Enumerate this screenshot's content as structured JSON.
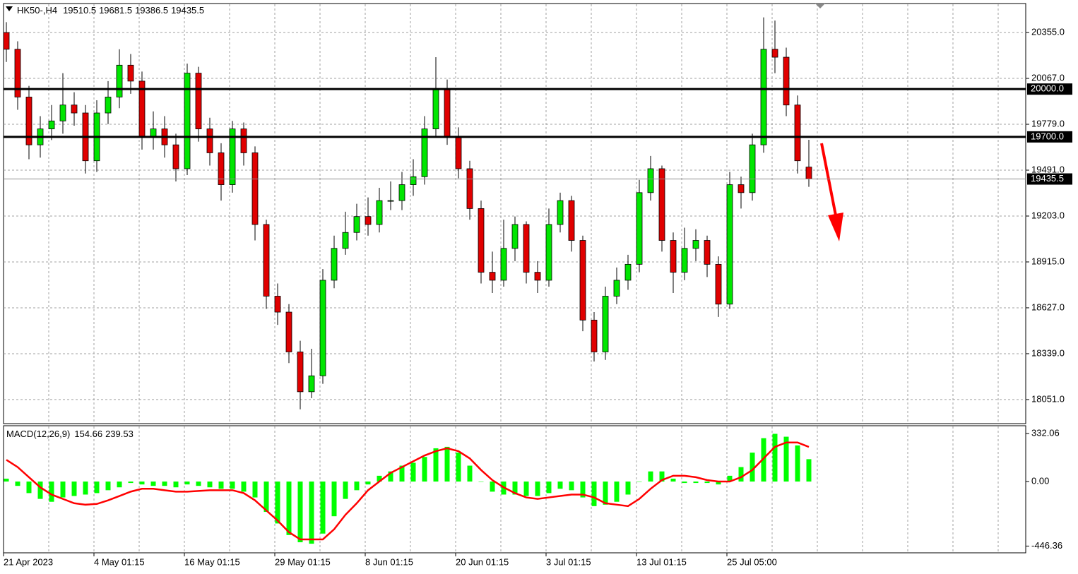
{
  "chart_data": [
    {
      "type": "candlestick",
      "title": "HK50-,H4",
      "categories": [
        "21 Apr 2023",
        null,
        null,
        null,
        null,
        null,
        null,
        null,
        "4 May 01:15",
        null,
        null,
        null,
        null,
        null,
        null,
        null,
        "16 May 01:15",
        null,
        null,
        null,
        null,
        null,
        null,
        null,
        "29 May 01:15",
        null,
        null,
        null,
        null,
        null,
        null,
        null,
        "8 Jun 01:15",
        null,
        null,
        null,
        null,
        null,
        null,
        null,
        "20 Jun 01:15",
        null,
        null,
        null,
        null,
        null,
        null,
        null,
        "3 Jul 01:15",
        null,
        null,
        null,
        null,
        null,
        null,
        null,
        "13 Jul 01:15",
        null,
        null,
        null,
        null,
        null,
        null,
        null,
        "25 Jul 05:00",
        null,
        null,
        null,
        null,
        null,
        null,
        null
      ],
      "open": [
        20355,
        20250,
        19950,
        19650,
        19750,
        19800,
        19900,
        19850,
        19550,
        19850,
        19950,
        20150,
        20050,
        19700,
        19750,
        19650,
        19500,
        20100,
        19750,
        19600,
        19400,
        19750,
        19600,
        19150,
        18700,
        18600,
        18350,
        18100,
        18200,
        18800,
        19000,
        19100,
        19200,
        19150,
        19300,
        19300,
        19400,
        19450,
        19750,
        20000,
        19700,
        19500,
        19250,
        18850,
        18800,
        19000,
        19150,
        18850,
        18800,
        19150,
        19300,
        19050,
        18550,
        18350,
        18700,
        18800,
        18900,
        19350,
        19500,
        19050,
        18850,
        19000,
        19050,
        18900,
        18650,
        19400,
        19350,
        19650,
        20250,
        20200,
        19900,
        19510.5
      ],
      "high": [
        20420,
        20300,
        20020,
        19830,
        19900,
        20100,
        19980,
        19900,
        19930,
        20050,
        20250,
        20220,
        20110,
        19860,
        19830,
        19720,
        20160,
        20140,
        19820,
        19660,
        19800,
        19790,
        19640,
        19180,
        18780,
        18650,
        18420,
        18370,
        18870,
        19080,
        19230,
        19280,
        19320,
        19380,
        19420,
        19480,
        19560,
        19830,
        20200,
        20060,
        19760,
        19550,
        19300,
        18980,
        19180,
        19200,
        19170,
        18920,
        19250,
        19350,
        19330,
        19080,
        18600,
        18760,
        18880,
        18960,
        19430,
        19580,
        19520,
        19100,
        19130,
        19120,
        19080,
        18950,
        19480,
        19450,
        19720,
        20450,
        20430,
        20260,
        19960,
        19681.5
      ],
      "low": [
        20170,
        19870,
        19560,
        19570,
        19680,
        19720,
        19770,
        19470,
        19480,
        19780,
        19880,
        19970,
        19620,
        19620,
        19570,
        19420,
        19460,
        19670,
        19520,
        19300,
        19350,
        19520,
        19050,
        18620,
        18520,
        18280,
        17990,
        18060,
        18150,
        18750,
        18960,
        19050,
        19080,
        19100,
        19240,
        19240,
        19330,
        19400,
        19700,
        19650,
        19440,
        19180,
        18780,
        18720,
        18760,
        18920,
        18780,
        18720,
        18760,
        19100,
        18980,
        18480,
        18290,
        18300,
        18650,
        18740,
        18850,
        19300,
        18980,
        18720,
        18800,
        18920,
        18820,
        18570,
        18620,
        19250,
        19300,
        19600,
        20100,
        19830,
        19470,
        19386.5
      ],
      "close": [
        20250,
        19950,
        19650,
        19750,
        19800,
        19900,
        19850,
        19550,
        19850,
        19950,
        20150,
        20050,
        19700,
        19750,
        19650,
        19500,
        20100,
        19750,
        19600,
        19400,
        19750,
        19600,
        19150,
        18700,
        18600,
        18350,
        18100,
        18200,
        18800,
        19000,
        19100,
        19200,
        19150,
        19300,
        19300,
        19400,
        19450,
        19750,
        20000,
        19700,
        19500,
        19250,
        18850,
        18800,
        19000,
        19150,
        18850,
        18800,
        19150,
        19300,
        19050,
        18550,
        18350,
        18700,
        18800,
        18900,
        19350,
        19500,
        19050,
        18850,
        19000,
        19050,
        18900,
        18650,
        19400,
        19350,
        19650,
        20250,
        20200,
        19900,
        19550,
        19435.5
      ],
      "up_color": "#00e600",
      "down_color": "#e00000",
      "ylim": [
        17900,
        20537
      ],
      "yticks": [
        {
          "value": 20355,
          "label": "20355.0"
        },
        {
          "value": 20067,
          "label": "20067.0"
        },
        {
          "value": 19779,
          "label": "19779.0"
        },
        {
          "value": 19491,
          "label": "19491.0"
        },
        {
          "value": 19203,
          "label": "19203.0"
        },
        {
          "value": 18915,
          "label": "18915.0"
        },
        {
          "value": 18627,
          "label": "18627.0"
        },
        {
          "value": 18339,
          "label": "18339.0"
        },
        {
          "value": 18051,
          "label": "18051.0"
        }
      ],
      "levels": [
        {
          "value": 20000,
          "label": "20000.0"
        },
        {
          "value": 19700,
          "label": "19700.0"
        }
      ],
      "grid": true
    },
    {
      "type": "macd",
      "title": "MACD(12,26,9)",
      "histogram": {
        "color": "#00ff00",
        "values": [
          20,
          -30,
          -80,
          -120,
          -140,
          -110,
          -100,
          -90,
          -80,
          -60,
          -40,
          -10,
          -20,
          -30,
          -30,
          -40,
          -20,
          -30,
          -40,
          -50,
          -50,
          -70,
          -110,
          -210,
          -290,
          -370,
          -420,
          -430,
          -360,
          -240,
          -120,
          -60,
          -20,
          40,
          70,
          110,
          130,
          170,
          230,
          240,
          200,
          110,
          0,
          -70,
          -90,
          -90,
          -100,
          -100,
          -80,
          -50,
          -60,
          -110,
          -170,
          -160,
          -140,
          -90,
          0,
          70,
          70,
          20,
          -10,
          -10,
          -10,
          -20,
          40,
          100,
          200,
          300,
          330,
          310,
          250,
          154.66
        ]
      },
      "signal": {
        "color": "#ff0000",
        "values": [
          150,
          100,
          30,
          -40,
          -90,
          -120,
          -150,
          -160,
          -155,
          -130,
          -100,
          -70,
          -50,
          -50,
          -60,
          -70,
          -70,
          -65,
          -60,
          -60,
          -60,
          -80,
          -130,
          -200,
          -270,
          -350,
          -400,
          -400,
          -400,
          -330,
          -230,
          -150,
          -60,
          0,
          60,
          100,
          140,
          180,
          210,
          230,
          210,
          160,
          80,
          10,
          -40,
          -80,
          -110,
          -120,
          -110,
          -100,
          -90,
          -90,
          -110,
          -150,
          -160,
          -170,
          -120,
          -50,
          10,
          40,
          40,
          30,
          10,
          0,
          0,
          30,
          80,
          160,
          240,
          270,
          270,
          239.53
        ]
      },
      "ylim": [
        -493,
        386
      ],
      "yticks": [
        332.06,
        {
          "value": 0,
          "label": "0.00"
        },
        -446.36
      ]
    }
  ]
}
